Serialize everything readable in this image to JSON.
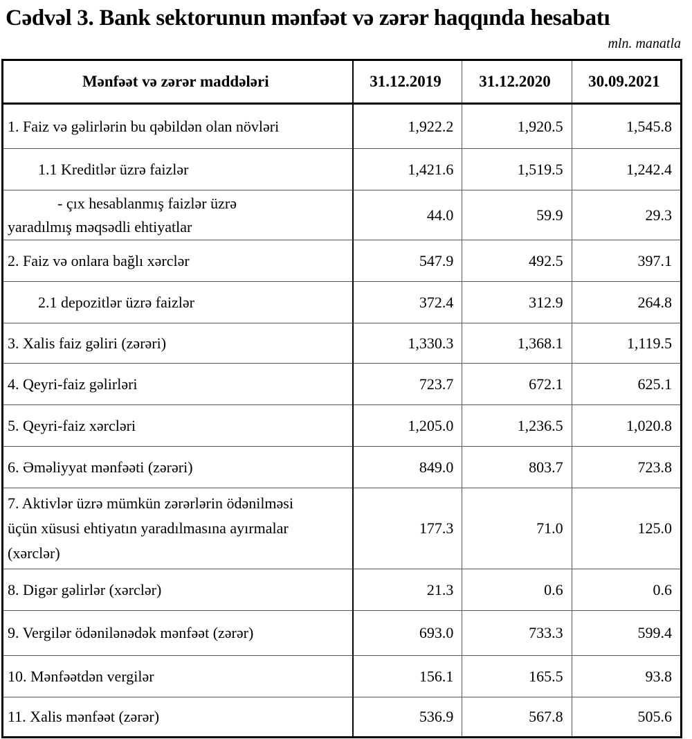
{
  "title": "Cədvəl 3. Bank sektorunun mənfəət və zərər haqqında hesabatı",
  "unit": "mln. manatla",
  "headers": [
    "Mənfəət və zərər maddələri",
    "31.12.2019",
    "31.12.2020",
    "30.09.2021"
  ],
  "rows": [
    {
      "label": "1. Faiz və gəlirlərin bu qəbildən olan növləri",
      "values": [
        "1,922.2",
        "1,920.5",
        "1,545.8"
      ]
    },
    {
      "label": "1.1 Kreditlər üzrə faizlər",
      "values": [
        "1,421.6",
        "1,519.5",
        "1,242.4"
      ]
    },
    {
      "label": "-  çıx hesablanmış faizlər üzrə",
      "label2": "yaradılmış məqsədli ehtiyatlar",
      "values": [
        "44.0",
        "59.9",
        "29.3"
      ]
    },
    {
      "label": "2. Faiz və onlara bağlı xərclər",
      "values": [
        "547.9",
        "492.5",
        "397.1"
      ]
    },
    {
      "label": "2.1 depozitlər üzrə faizlər",
      "values": [
        "372.4",
        "312.9",
        "264.8"
      ]
    },
    {
      "label": "3. Xalis faiz gəliri (zərəri)",
      "values": [
        "1,330.3",
        "1,368.1",
        "1,119.5"
      ]
    },
    {
      "label": "4. Qeyri-faiz gəlirləri",
      "values": [
        "723.7",
        "672.1",
        "625.1"
      ]
    },
    {
      "label": "5. Qeyri-faiz xərcləri",
      "values": [
        "1,205.0",
        "1,236.5",
        "1,020.8"
      ]
    },
    {
      "label": "6. Əməliyyat mənfəəti (zərəri)",
      "values": [
        "849.0",
        "803.7",
        "723.8"
      ]
    },
    {
      "label": "7. Aktivlər üzrə mümkün zərərlərin ödənilməsi üçün xüsusi ehtiyatın yaradılmasına ayırmalar (xərclər)",
      "values": [
        "177.3",
        "71.0",
        "125.0"
      ]
    },
    {
      "label": "8. Digər gəlirlər (xərclər)",
      "values": [
        "21.3",
        "0.6",
        "0.6"
      ]
    },
    {
      "label": "9. Vergilər ödənilənədək mənfəət (zərər)",
      "values": [
        "693.0",
        "733.3",
        "599.4"
      ]
    },
    {
      "label": "10. Mənfəətdən vergilər",
      "values": [
        "156.1",
        "165.5",
        "93.8"
      ]
    },
    {
      "label": "11. Xalis mənfəət (zərər)",
      "values": [
        "536.9",
        "567.8",
        "505.6"
      ]
    }
  ]
}
